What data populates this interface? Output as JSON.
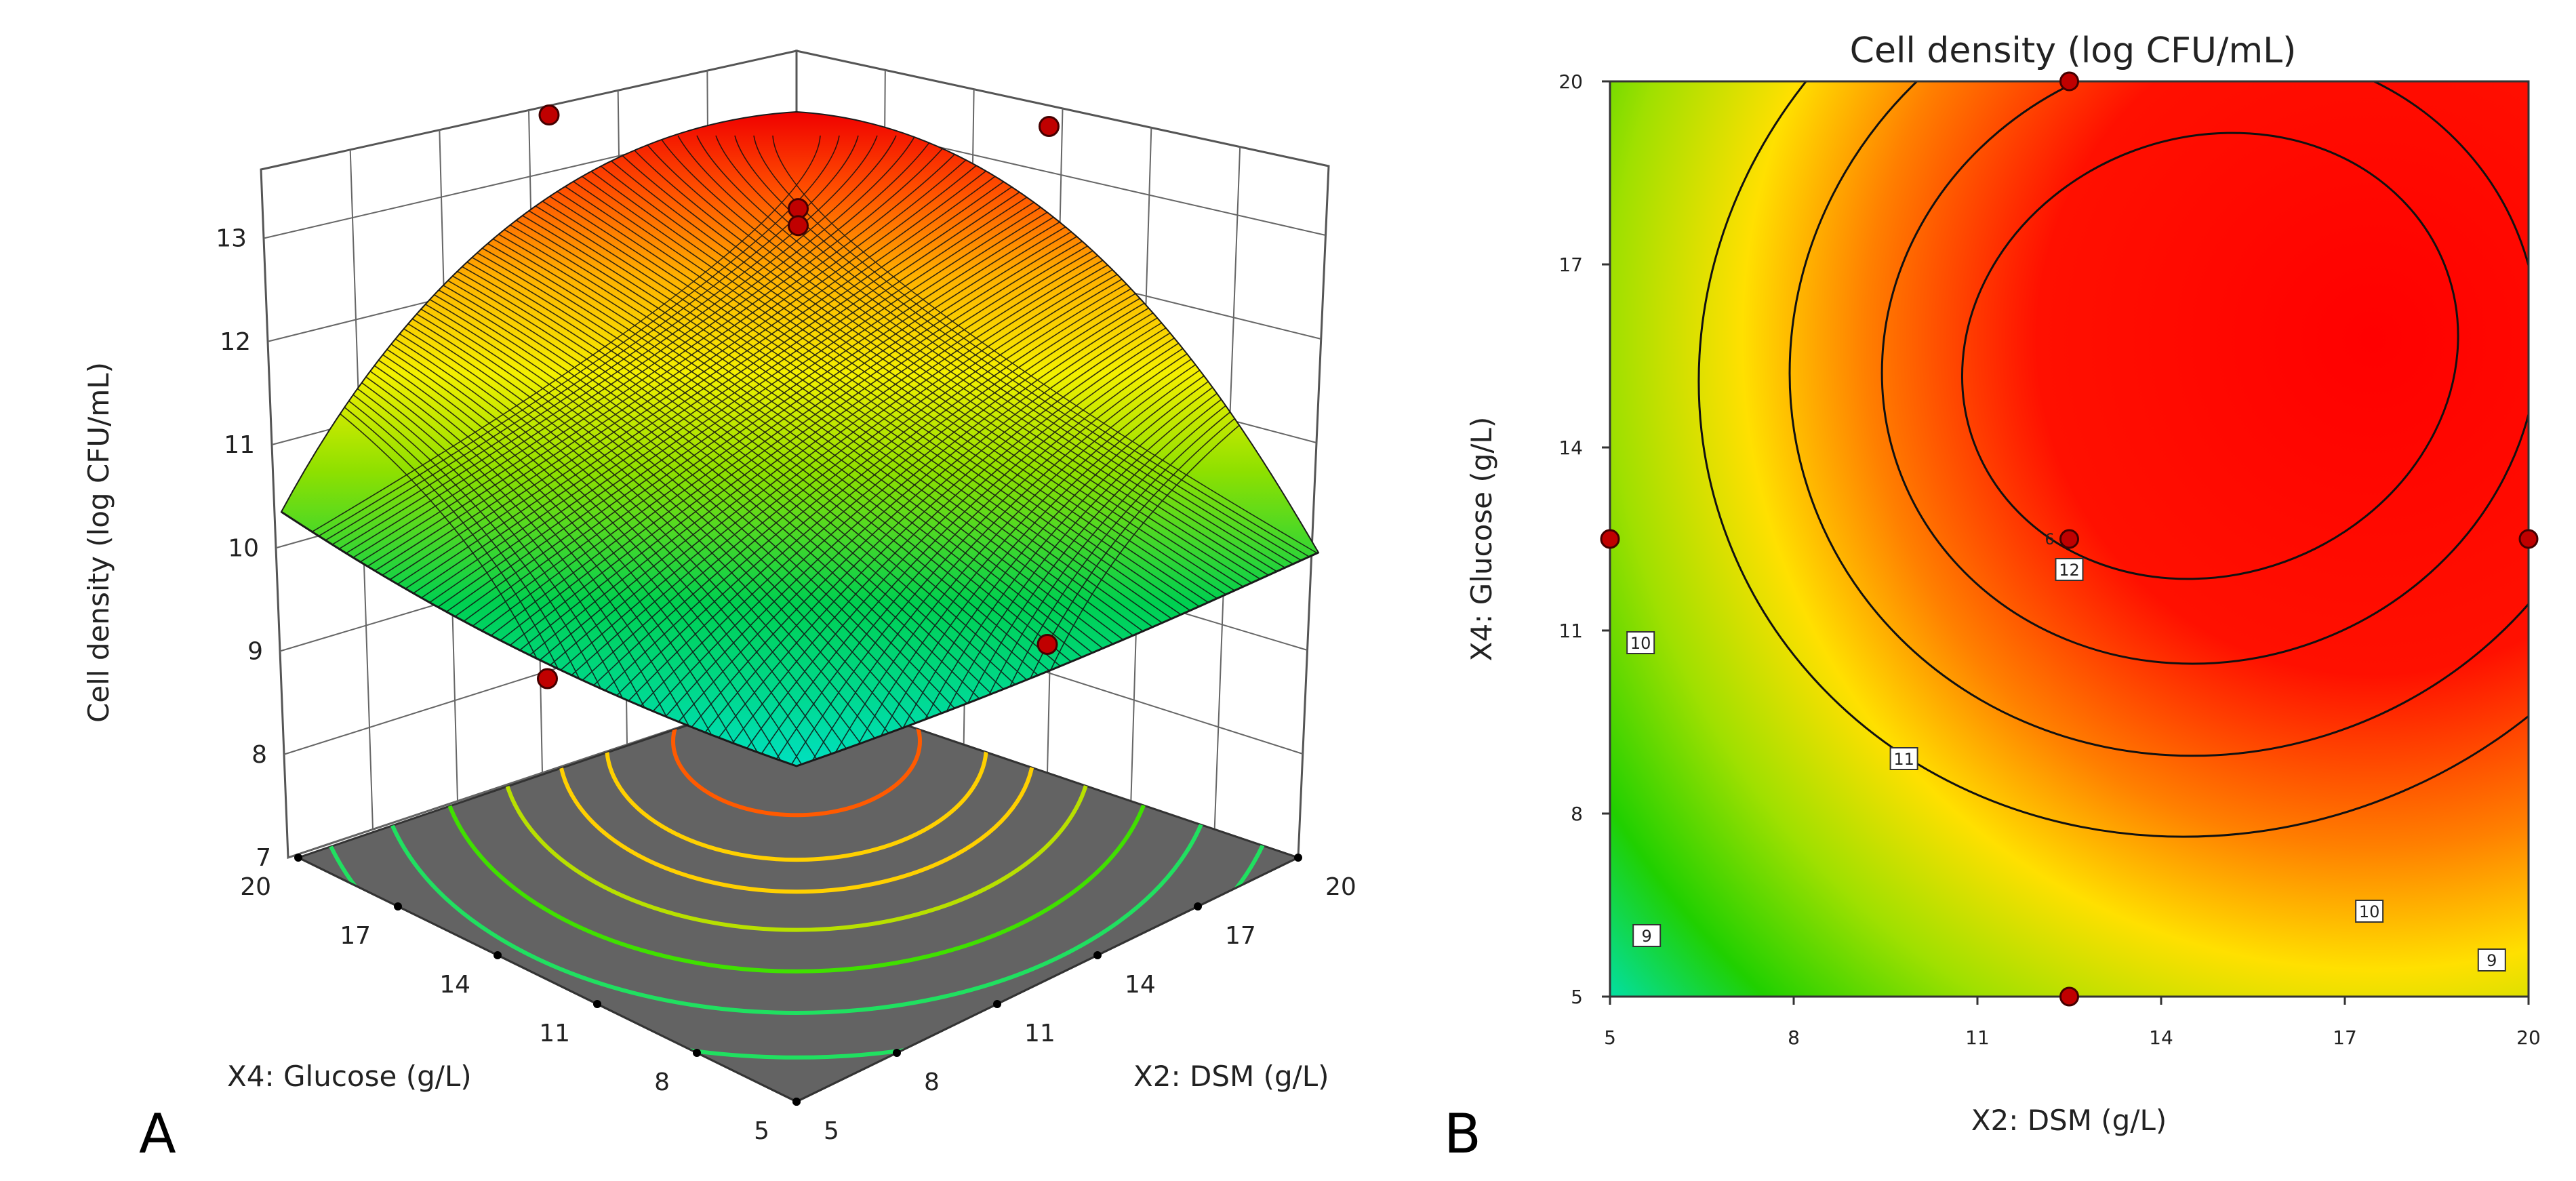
{
  "chart_data": [
    {
      "panel": "A",
      "type": "surface3d",
      "zlabel": "Cell density (log CFU/mL)",
      "xlabel": "X2: DSM (g/L)",
      "ylabel": "X4: Glucose (g/L)",
      "x_ticks": [
        "5",
        "8",
        "11",
        "14",
        "17",
        "20"
      ],
      "y_ticks": [
        "5",
        "8",
        "11",
        "14",
        "17",
        "20"
      ],
      "z_ticks": [
        "7",
        "8",
        "9",
        "10",
        "11",
        "12",
        "13"
      ],
      "xlim": [
        5,
        20
      ],
      "ylim": [
        5,
        20
      ],
      "zlim": [
        7,
        13
      ],
      "colormap": [
        "#00e0c0",
        "#00d060",
        "#60e000",
        "#f0f000",
        "#ffc000",
        "#ff6000",
        "#ff0000"
      ],
      "points": [
        {
          "x": 12.5,
          "y": 12.5,
          "z": 12.45
        },
        {
          "x": 12.5,
          "y": 12.5,
          "z": 12.3
        },
        {
          "x": 12.5,
          "y": 20,
          "z": 12.2
        },
        {
          "x": 20,
          "y": 12.5,
          "z": 12.1
        },
        {
          "x": 12.5,
          "y": 5,
          "z": 9.7
        },
        {
          "x": 5,
          "y": 12.5,
          "z": 9.4
        }
      ]
    },
    {
      "panel": "B",
      "type": "contour",
      "title": "Cell density (log CFU/mL)",
      "xlabel": "X2: DSM (g/L)",
      "ylabel": "X4: Glucose (g/L)",
      "x_ticks": [
        "5",
        "8",
        "11",
        "14",
        "17",
        "20"
      ],
      "y_ticks": [
        "5",
        "8",
        "11",
        "14",
        "17",
        "20"
      ],
      "xlim": [
        5,
        20
      ],
      "ylim": [
        5,
        20
      ],
      "contour_levels": [
        "9",
        "10",
        "11",
        "12"
      ],
      "contour_labels": [
        {
          "text": "12",
          "x": 12.5,
          "y": 12.0
        },
        {
          "text": "11",
          "x": 9.8,
          "y": 8.9
        },
        {
          "text": "10",
          "x": 5.5,
          "y": 10.8
        },
        {
          "text": "10",
          "x": 17.4,
          "y": 6.4
        },
        {
          "text": "9",
          "x": 5.6,
          "y": 6.0
        },
        {
          "text": "9",
          "x": 19.4,
          "y": 5.6
        }
      ],
      "design_points": [
        {
          "x": 12.5,
          "y": 20
        },
        {
          "x": 12.5,
          "y": 12.5,
          "replicates": "6"
        },
        {
          "x": 5,
          "y": 12.5
        },
        {
          "x": 20,
          "y": 12.5
        },
        {
          "x": 12.5,
          "y": 5
        }
      ]
    }
  ]
}
